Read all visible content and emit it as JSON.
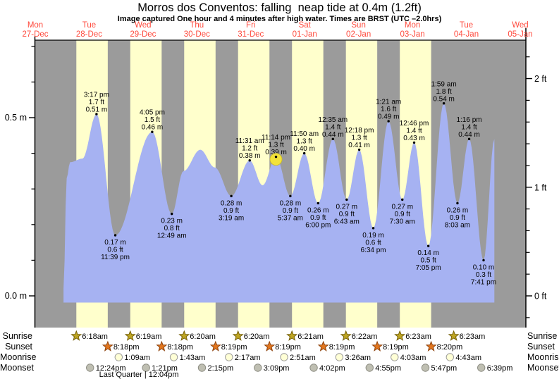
{
  "title": "Morros dos Conventos: falling  neap tide at 0.4m (1.2ft)",
  "subtitle": "Image captured One hour and 4 minutes after high water. Times are BRST (UTC –2.0hrs)",
  "colors": {
    "night": "#9b9b9b",
    "daylight": "#ffffcc",
    "tide_fill": "#a6b2f2",
    "date_label": "#ff4a3d",
    "current_marker": "#f2e23a",
    "current_marker_border": "#c9b929",
    "sunrise_star": "#bfa622",
    "sunrise_star_border": "#756008",
    "sunset_star": "#e2761e",
    "sunset_star_border": "#8e430e",
    "moonrise_fill": "#ffffd6",
    "moonrise_border": "#999999",
    "moonset_fill": "#bfbfb2",
    "moonset_border": "#8e8e84",
    "text": "#000000"
  },
  "days": [
    {
      "dow": "Mon",
      "date": "27-Dec"
    },
    {
      "dow": "Tue",
      "date": "28-Dec"
    },
    {
      "dow": "Wed",
      "date": "29-Dec"
    },
    {
      "dow": "Thu",
      "date": "30-Dec"
    },
    {
      "dow": "Fri",
      "date": "31-Dec"
    },
    {
      "dow": "Sat",
      "date": "01-Jan"
    },
    {
      "dow": "Sun",
      "date": "02-Jan"
    },
    {
      "dow": "Mon",
      "date": "03-Jan"
    },
    {
      "dow": "Tue",
      "date": "04-Jan"
    },
    {
      "dow": "Wed",
      "date": "05-Jan"
    }
  ],
  "axes": {
    "left": {
      "major": [
        {
          "m": 0.0,
          "label": "0.0 m"
        },
        {
          "m": 0.5,
          "label": "0.5 m"
        }
      ],
      "minor": [
        0.1,
        0.2,
        0.3,
        0.4,
        0.6,
        0.7
      ]
    },
    "right": {
      "major": [
        {
          "ft": 0,
          "label": "0 ft"
        },
        {
          "ft": 1,
          "label": "1 ft"
        },
        {
          "ft": 2,
          "label": "2 ft"
        }
      ],
      "minor": [
        -0.2,
        0.2,
        0.4,
        0.6,
        0.8,
        1.2,
        1.4,
        1.6,
        1.8,
        2.2
      ]
    }
  },
  "chart_data": {
    "type": "area",
    "x_axis": "time (27-Dec noon to 05-Jan, BRST)",
    "y_axis_left": "tide height (m)",
    "y_axis_right": "tide height (ft)",
    "tide_points": [
      {
        "day": 1,
        "time": "12:35 am",
        "m": 0.02
      },
      {
        "day": 1,
        "time": "2:00 am",
        "m": 0.33
      },
      {
        "day": 1,
        "time": "3:30 am",
        "m": 0.375
      },
      {
        "day": 1,
        "time": "9:00 am",
        "m": 0.385
      },
      {
        "day": 1,
        "time": "3:17 pm",
        "m": 0.51,
        "annotation": {
          "position": "above",
          "lines": [
            "3:17 pm",
            "1.7 ft",
            "0.51 m"
          ]
        }
      },
      {
        "day": 1,
        "time": "11:39 pm",
        "m": 0.17,
        "annotation": {
          "position": "below",
          "lines": [
            "0.17 m",
            "0.6 ft",
            "11:39 pm"
          ]
        }
      },
      {
        "day": 2,
        "time": "4:05 pm",
        "m": 0.46,
        "annotation": {
          "position": "above",
          "lines": [
            "4:05 pm",
            "1.5 ft",
            "0.46 m"
          ]
        }
      },
      {
        "day": 3,
        "time": "12:49 am",
        "m": 0.23,
        "annotation": {
          "position": "below",
          "lines": [
            "0.23 m",
            "0.8 ft",
            "12:49 am"
          ]
        }
      },
      {
        "day": 3,
        "time": "6:00 am",
        "m": 0.35
      },
      {
        "day": 3,
        "time": "1:30 pm",
        "m": 0.41
      },
      {
        "day": 3,
        "time": "8:00 pm",
        "m": 0.36
      },
      {
        "day": 4,
        "time": "3:19 am",
        "m": 0.28,
        "annotation": {
          "position": "below",
          "lines": [
            "0.28 m",
            "0.9 ft",
            "3:19 am"
          ]
        }
      },
      {
        "day": 4,
        "time": "11:31 am",
        "m": 0.38,
        "annotation": {
          "position": "above",
          "lines": [
            "11:31 am",
            "1.2 ft",
            "0.38 m"
          ]
        }
      },
      {
        "day": 4,
        "time": "5:15 pm",
        "m": 0.31
      },
      {
        "day": 4,
        "time": "11:14 pm",
        "m": 0.39,
        "current_marker": true,
        "annotation": {
          "position": "above",
          "lines": [
            "11:14 pm",
            "1.3 ft",
            "0.39 m"
          ]
        }
      },
      {
        "day": 5,
        "time": "5:37 am",
        "m": 0.28,
        "annotation": {
          "position": "below",
          "lines": [
            "0.28 m",
            "0.9 ft",
            "5:37 am"
          ]
        }
      },
      {
        "day": 5,
        "time": "11:50 am",
        "m": 0.4,
        "annotation": {
          "position": "above",
          "lines": [
            "11:50 am",
            "1.3 ft",
            "0.40 m"
          ]
        }
      },
      {
        "day": 5,
        "time": "6:00 pm",
        "m": 0.26,
        "annotation": {
          "position": "below",
          "lines": [
            "0.26 m",
            "0.9 ft",
            "6:00 pm"
          ]
        }
      },
      {
        "day": 6,
        "time": "12:35 am",
        "m": 0.44,
        "annotation": {
          "position": "above",
          "lines": [
            "12:35 am",
            "1.4 ft",
            "0.44 m"
          ]
        }
      },
      {
        "day": 6,
        "time": "6:43 am",
        "m": 0.27,
        "annotation": {
          "position": "below",
          "lines": [
            "0.27 m",
            "0.9 ft",
            "6:43 am"
          ]
        }
      },
      {
        "day": 6,
        "time": "12:18 pm",
        "m": 0.41,
        "annotation": {
          "position": "above",
          "lines": [
            "12:18 pm",
            "1.3 ft",
            "0.41 m"
          ]
        }
      },
      {
        "day": 6,
        "time": "6:34 pm",
        "m": 0.19,
        "annotation": {
          "position": "below",
          "lines": [
            "0.19 m",
            "0.6 ft",
            "6:34 pm"
          ]
        }
      },
      {
        "day": 7,
        "time": "1:21 am",
        "m": 0.49,
        "annotation": {
          "position": "above",
          "lines": [
            "1:21 am",
            "1.6 ft",
            "0.49 m"
          ]
        }
      },
      {
        "day": 7,
        "time": "7:30 am",
        "m": 0.27,
        "annotation": {
          "position": "below",
          "lines": [
            "0.27 m",
            "0.9 ft",
            "7:30 am"
          ]
        }
      },
      {
        "day": 7,
        "time": "12:46 pm",
        "m": 0.43,
        "annotation": {
          "position": "above",
          "lines": [
            "12:46 pm",
            "1.4 ft",
            "0.43 m"
          ]
        }
      },
      {
        "day": 7,
        "time": "7:05 pm",
        "m": 0.14,
        "annotation": {
          "position": "below",
          "lines": [
            "0.14 m",
            "0.5 ft",
            "7:05 pm"
          ]
        }
      },
      {
        "day": 8,
        "time": "1:59 am",
        "m": 0.54,
        "annotation": {
          "position": "above",
          "lines": [
            "1:59 am",
            "1.8 ft",
            "0.54 m"
          ]
        }
      },
      {
        "day": 8,
        "time": "8:03 am",
        "m": 0.26,
        "annotation": {
          "position": "below",
          "lines": [
            "0.26 m",
            "0.9 ft",
            "8:03 am"
          ]
        }
      },
      {
        "day": 8,
        "time": "1:16 pm",
        "m": 0.44,
        "annotation": {
          "position": "above",
          "lines": [
            "1:16 pm",
            "1.4 ft",
            "0.44 m"
          ]
        }
      },
      {
        "day": 8,
        "time": "7:41 pm",
        "m": 0.1,
        "annotation": {
          "position": "below",
          "lines": [
            "0.10 m",
            "0.3 ft",
            "7:41 pm"
          ]
        }
      },
      {
        "day": 9,
        "time": "12:30 am",
        "m": 0.44
      }
    ]
  },
  "astro": {
    "rows": [
      {
        "name": "sunrise",
        "label": "Sunrise",
        "icon": "sunrise-star",
        "events": [
          {
            "day": 1,
            "time": "6:18am"
          },
          {
            "day": 2,
            "time": "6:19am"
          },
          {
            "day": 3,
            "time": "6:20am"
          },
          {
            "day": 4,
            "time": "6:20am"
          },
          {
            "day": 5,
            "time": "6:21am"
          },
          {
            "day": 6,
            "time": "6:22am"
          },
          {
            "day": 7,
            "time": "6:23am"
          },
          {
            "day": 8,
            "time": "6:23am"
          }
        ]
      },
      {
        "name": "sunset",
        "label": "Sunset",
        "icon": "sunset-star",
        "events": [
          {
            "day": 1,
            "time": "8:18pm"
          },
          {
            "day": 2,
            "time": "8:18pm"
          },
          {
            "day": 3,
            "time": "8:19pm"
          },
          {
            "day": 4,
            "time": "8:19pm"
          },
          {
            "day": 5,
            "time": "8:19pm"
          },
          {
            "day": 6,
            "time": "8:19pm"
          },
          {
            "day": 7,
            "time": "8:20pm"
          }
        ]
      },
      {
        "name": "moonrise",
        "label": "Moonrise",
        "icon": "moonrise-circle",
        "events": [
          {
            "day": 2,
            "time": "1:09am"
          },
          {
            "day": 3,
            "time": "1:43am"
          },
          {
            "day": 4,
            "time": "2:17am"
          },
          {
            "day": 5,
            "time": "2:51am"
          },
          {
            "day": 6,
            "time": "3:26am"
          },
          {
            "day": 7,
            "time": "4:03am"
          },
          {
            "day": 8,
            "time": "4:43am"
          }
        ]
      },
      {
        "name": "moonset",
        "label": "Moonset",
        "icon": "moonset-circle",
        "events": [
          {
            "day": 1,
            "time": "12:24pm"
          },
          {
            "day": 2,
            "time": "1:21pm"
          },
          {
            "day": 3,
            "time": "2:15pm"
          },
          {
            "day": 4,
            "time": "3:09pm"
          },
          {
            "day": 5,
            "time": "4:02pm"
          },
          {
            "day": 6,
            "time": "4:55pm"
          },
          {
            "day": 7,
            "time": "5:47pm"
          },
          {
            "day": 8,
            "time": "6:39pm"
          }
        ]
      }
    ],
    "moon_phase": {
      "label": "Last Quarter | 12:04pm",
      "day": 2,
      "time": "12:04pm"
    }
  }
}
